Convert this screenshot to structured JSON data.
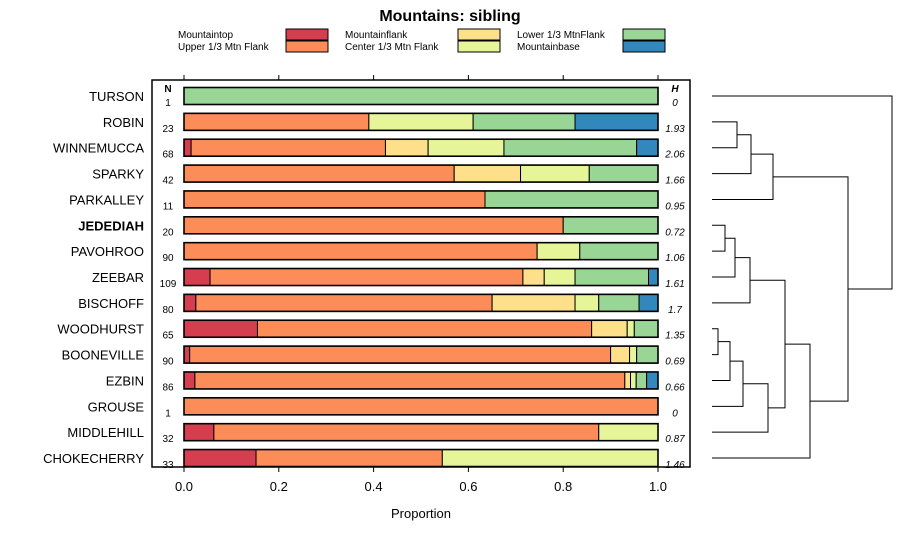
{
  "chart_data": {
    "type": "stacked-bar-horizontal",
    "title": "Mountains: sibling",
    "xlabel": "Proportion",
    "xlim": [
      0,
      1
    ],
    "xticks": [
      "0.0",
      "0.2",
      "0.4",
      "0.6",
      "0.8",
      "1.0"
    ],
    "n_header": "N",
    "h_header": "H",
    "legend": [
      {
        "label": "Mountaintop",
        "color": "#d53e4f"
      },
      {
        "label": "Upper 1/3 Mtn Flank",
        "color": "#fc8d59"
      },
      {
        "label": "Mountainflank",
        "color": "#fee08b"
      },
      {
        "label": "Center 1/3 Mtn Flank",
        "color": "#e6f598"
      },
      {
        "label": "Lower 1/3 MtnFlank",
        "color": "#99d594"
      },
      {
        "label": "Mountainbase",
        "color": "#3288bd"
      }
    ],
    "rows": [
      {
        "name": "TURSON",
        "n": "1",
        "h": "0",
        "bold": false,
        "values": [
          0,
          0,
          0,
          0,
          1.0,
          0
        ]
      },
      {
        "name": "ROBIN",
        "n": "23",
        "h": "1.93",
        "bold": false,
        "values": [
          0,
          0.39,
          0,
          0.22,
          0.215,
          0.175
        ]
      },
      {
        "name": "WINNEMUCCA",
        "n": "68",
        "h": "2.06",
        "bold": false,
        "values": [
          0.015,
          0.41,
          0.09,
          0.16,
          0.28,
          0.045
        ]
      },
      {
        "name": "SPARKY",
        "n": "42",
        "h": "1.66",
        "bold": false,
        "values": [
          0,
          0.57,
          0.14,
          0.145,
          0.145,
          0
        ]
      },
      {
        "name": "PARKALLEY",
        "n": "11",
        "h": "0.95",
        "bold": false,
        "values": [
          0,
          0.635,
          0,
          0,
          0.365,
          0
        ]
      },
      {
        "name": "JEDEDIAH",
        "n": "20",
        "h": "0.72",
        "bold": true,
        "values": [
          0,
          0.8,
          0,
          0,
          0.2,
          0
        ]
      },
      {
        "name": "PAVOHROO",
        "n": "90",
        "h": "1.06",
        "bold": false,
        "values": [
          0,
          0.745,
          0,
          0.09,
          0.165,
          0
        ]
      },
      {
        "name": "ZEEBAR",
        "n": "109",
        "h": "1.61",
        "bold": false,
        "values": [
          0.055,
          0.66,
          0.045,
          0.065,
          0.155,
          0.02
        ]
      },
      {
        "name": "BISCHOFF",
        "n": "80",
        "h": "1.7",
        "bold": false,
        "values": [
          0.025,
          0.625,
          0.175,
          0.05,
          0.085,
          0.04
        ]
      },
      {
        "name": "WOODHURST",
        "n": "65",
        "h": "1.35",
        "bold": false,
        "values": [
          0.155,
          0.705,
          0.075,
          0.015,
          0.05,
          0
        ]
      },
      {
        "name": "BOONEVILLE",
        "n": "90",
        "h": "0.69",
        "bold": false,
        "values": [
          0.012,
          0.888,
          0.04,
          0.015,
          0.045,
          0
        ]
      },
      {
        "name": "EZBIN",
        "n": "86",
        "h": "0.66",
        "bold": false,
        "values": [
          0.023,
          0.907,
          0.012,
          0.012,
          0.022,
          0.024
        ]
      },
      {
        "name": "GROUSE",
        "n": "1",
        "h": "0",
        "bold": false,
        "values": [
          0,
          1.0,
          0,
          0,
          0,
          0
        ]
      },
      {
        "name": "MIDDLEHILL",
        "n": "32",
        "h": "0.87",
        "bold": false,
        "values": [
          0.063,
          0.812,
          0,
          0.125,
          0,
          0
        ]
      },
      {
        "name": "CHOKECHERRY",
        "n": "33",
        "h": "1.46",
        "bold": false,
        "values": [
          0.152,
          0.393,
          0,
          0.455,
          0,
          0
        ]
      }
    ]
  }
}
